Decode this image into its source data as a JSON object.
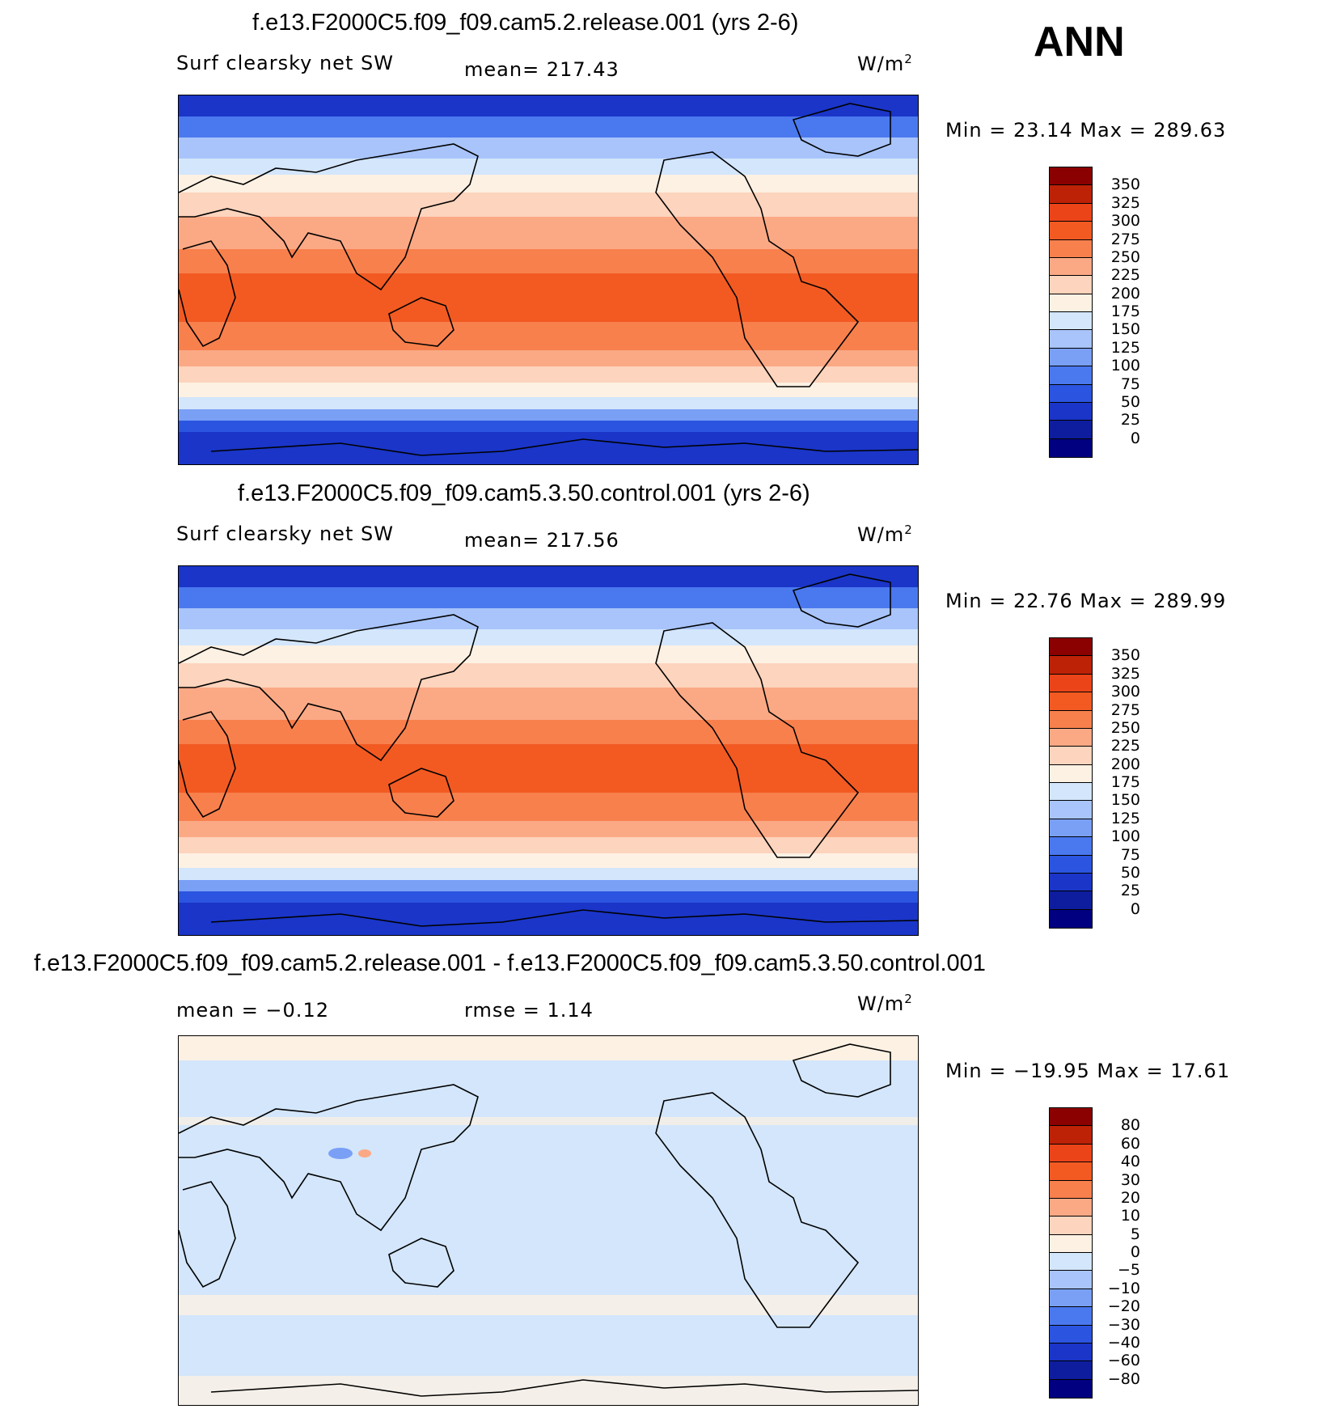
{
  "season": "ANN",
  "colors": {
    "abs": [
      "#000080",
      "#0d1d9e",
      "#1a35c8",
      "#2b55e0",
      "#4a78ef",
      "#7aa0f6",
      "#a8c4fa",
      "#d3e6fb",
      "#fdf1e3",
      "#fdd4bd",
      "#fba985",
      "#f8804d",
      "#f25a22",
      "#ec4419",
      "#bd2207",
      "#8b0000"
    ],
    "diff": [
      "#000080",
      "#0d1d9e",
      "#1a35c8",
      "#2b55e0",
      "#4a78ef",
      "#7aa0f6",
      "#a8c4fa",
      "#d3e6fb",
      "#fdf1e3",
      "#fdd4bd",
      "#fba985",
      "#f8804d",
      "#f25a22",
      "#ec4419",
      "#bd2207",
      "#8b0000"
    ]
  },
  "panels": [
    {
      "title": "f.e13.F2000C5.f09_f09.cam5.2.release.001 (yrs 2-6)",
      "left_label": "Surf clearsky net SW",
      "center_label": "mean= 217.43",
      "units_base": "W/m",
      "units_exp": "2",
      "minmax": "Min =   23.14 Max =  289.63",
      "ticks": [
        "350",
        "325",
        "300",
        "275",
        "250",
        "225",
        "200",
        "175",
        "150",
        "125",
        "100",
        "75",
        "50",
        "25",
        "0"
      ],
      "type": "abs"
    },
    {
      "title": "f.e13.F2000C5.f09_f09.cam5.3.50.control.001 (yrs 2-6)",
      "left_label": "Surf clearsky net SW",
      "center_label": "mean= 217.56",
      "units_base": "W/m",
      "units_exp": "2",
      "minmax": "Min =   22.76 Max =  289.99",
      "ticks": [
        "350",
        "325",
        "300",
        "275",
        "250",
        "225",
        "200",
        "175",
        "150",
        "125",
        "100",
        "75",
        "50",
        "25",
        "0"
      ],
      "type": "abs"
    },
    {
      "title": "f.e13.F2000C5.f09_f09.cam5.2.release.001 - f.e13.F2000C5.f09_f09.cam5.3.50.control.001",
      "left_label": "mean =   −0.12",
      "center_label": "rmse =    1.14",
      "units_base": "W/m",
      "units_exp": "2",
      "minmax": "Min = −19.95 Max =   17.61",
      "ticks": [
        "80",
        "60",
        "40",
        "30",
        "20",
        "10",
        "5",
        "0",
        "−5",
        "−10",
        "−20",
        "−30",
        "−40",
        "−60",
        "−80"
      ],
      "type": "diff"
    }
  ]
}
